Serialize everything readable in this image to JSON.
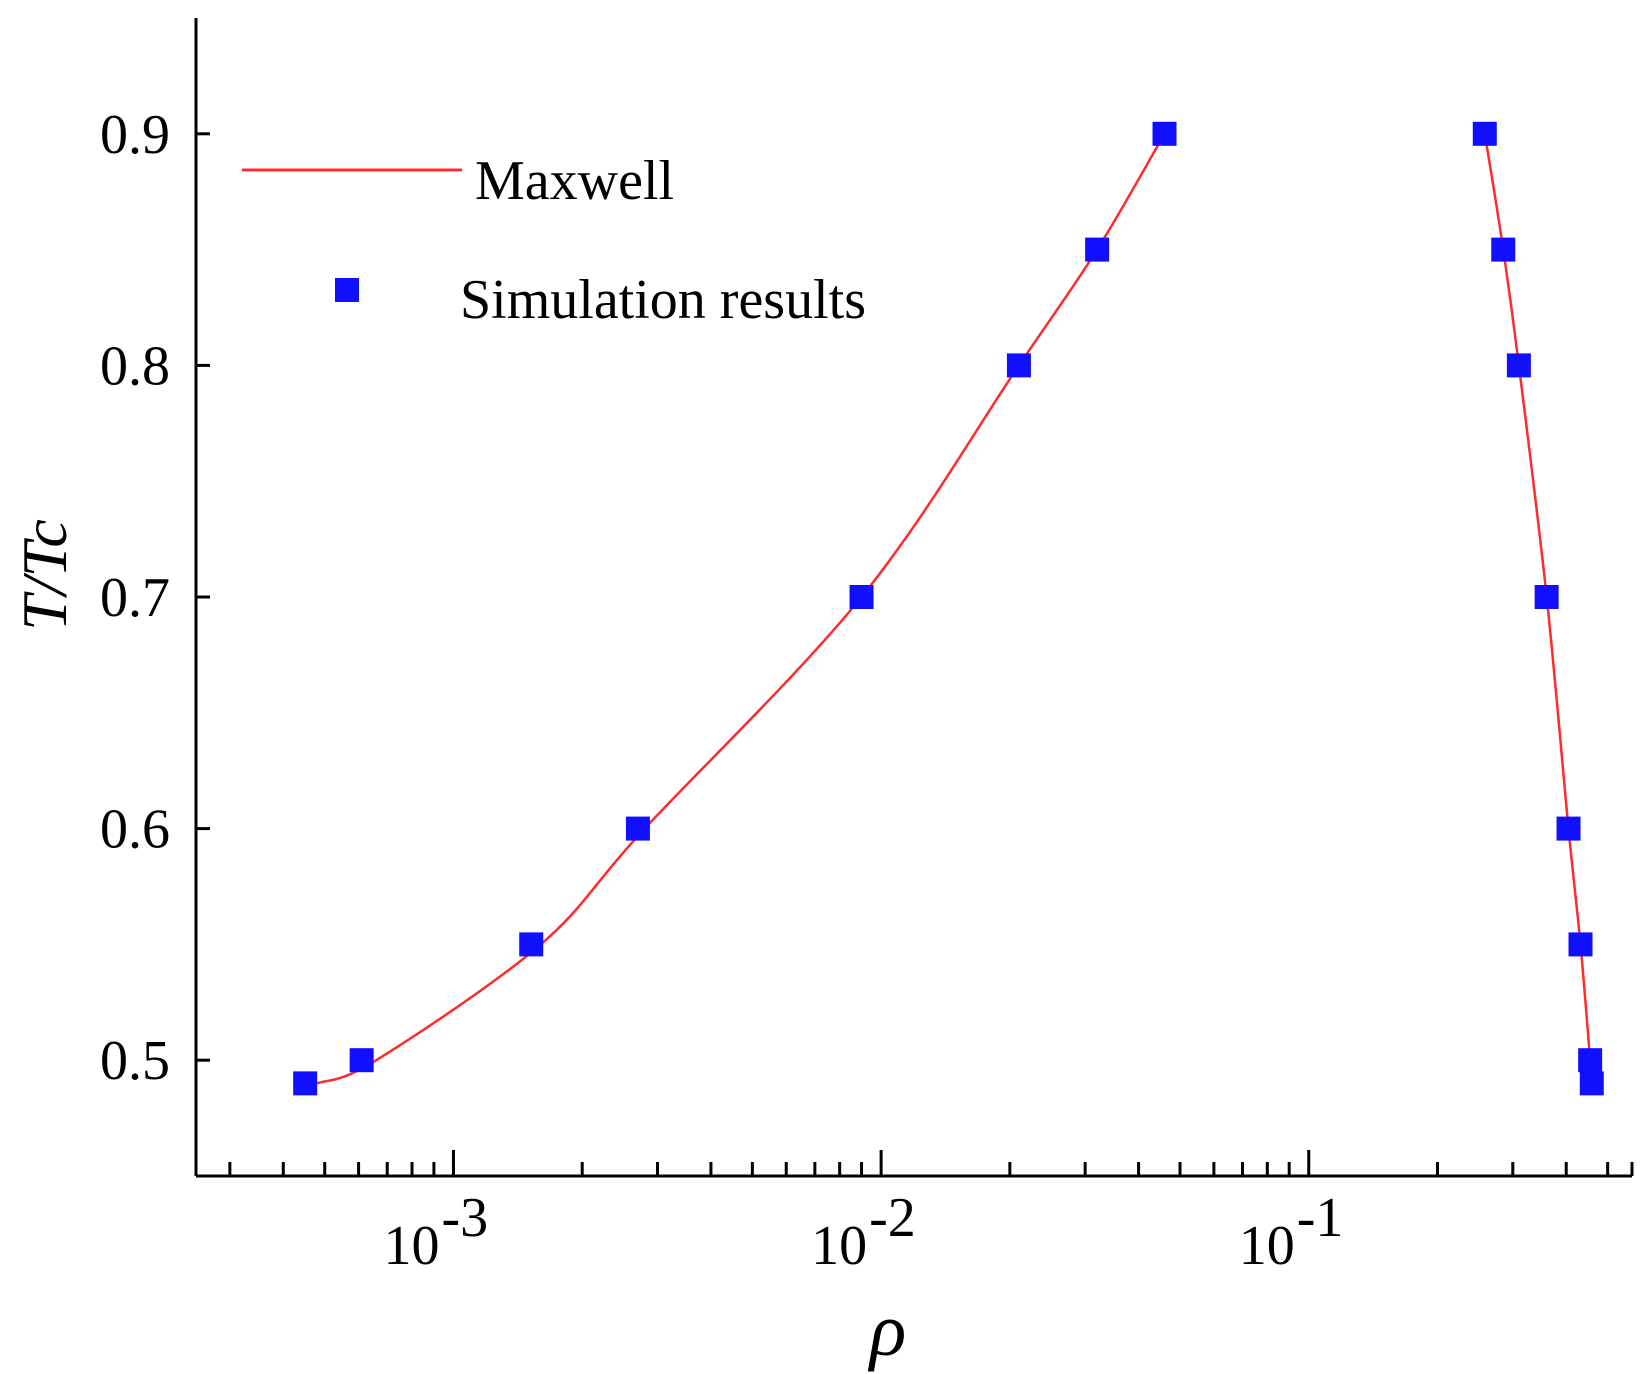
{
  "chart_data": {
    "type": "scatter",
    "title": "",
    "xlabel": "ρ",
    "ylabel": "T/Tc",
    "xscale": "log",
    "xlim": [
      0.00025,
      0.57
    ],
    "ylim": [
      0.45,
      0.95
    ],
    "grid": false,
    "legend_position": "top-left",
    "x_ticks": [
      {
        "value": 0.001,
        "base": "10",
        "exp": "-3"
      },
      {
        "value": 0.01,
        "base": "10",
        "exp": "-2"
      },
      {
        "value": 0.1,
        "base": "10",
        "exp": "-1"
      }
    ],
    "y_ticks": [
      {
        "value": 0.5,
        "label": "0.5"
      },
      {
        "value": 0.6,
        "label": "0.6"
      },
      {
        "value": 0.7,
        "label": "0.7"
      },
      {
        "value": 0.8,
        "label": "0.8"
      },
      {
        "value": 0.9,
        "label": "0.9"
      }
    ],
    "series": [
      {
        "name": "Maxwell",
        "kind": "line",
        "color": "#ff2a2a",
        "branches": [
          {
            "x": [
              0.00048,
              0.00066,
              0.0016,
              0.0028,
              0.009,
              0.021,
              0.032,
              0.046
            ],
            "y": [
              0.49,
              0.5,
              0.55,
              0.6,
              0.7,
              0.8,
              0.85,
              0.9
            ]
          },
          {
            "x": [
              0.258,
              0.285,
              0.31,
              0.36,
              0.405,
              0.432,
              0.455,
              0.459
            ],
            "y": [
              0.9,
              0.85,
              0.8,
              0.7,
              0.6,
              0.55,
              0.5,
              0.49
            ]
          }
        ]
      },
      {
        "name": "Simulation results",
        "kind": "scatter",
        "color": "#1010ff",
        "marker": "square",
        "x": [
          0.00045,
          0.00061,
          0.00152,
          0.0027,
          0.009,
          0.021,
          0.032,
          0.046,
          0.258,
          0.285,
          0.31,
          0.36,
          0.405,
          0.432,
          0.455,
          0.459
        ],
        "y": [
          0.49,
          0.5,
          0.55,
          0.6,
          0.7,
          0.8,
          0.85,
          0.9,
          0.9,
          0.85,
          0.8,
          0.7,
          0.6,
          0.55,
          0.5,
          0.49
        ]
      }
    ]
  }
}
